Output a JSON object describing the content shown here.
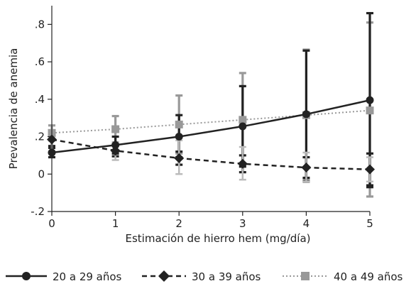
{
  "chart_data": {
    "type": "line",
    "xlabel": "Estimación de hierro hem (mg/día)",
    "ylabel": "Prevalencia de anemia",
    "xlim": [
      0,
      5
    ],
    "ylim": [
      -0.2,
      0.9
    ],
    "x_ticks": [
      "0",
      "1",
      "2",
      "3",
      "4",
      "5"
    ],
    "y_ticks": [
      {
        "value": -0.2,
        "label": "-.2"
      },
      {
        "value": 0,
        "label": "0"
      },
      {
        "value": 0.2,
        "label": ".2"
      },
      {
        "value": 0.4,
        "label": ".4"
      },
      {
        "value": 0.6,
        "label": ".6"
      },
      {
        "value": 0.8,
        "label": ".8"
      }
    ],
    "x": [
      0,
      1,
      2,
      3,
      4,
      5
    ],
    "legend_position": "bottom",
    "series": [
      {
        "name": "40 a 49 años",
        "color": "#999999",
        "dash": "dotted",
        "marker": "square",
        "values": [
          0.22,
          0.24,
          0.265,
          0.29,
          0.315,
          0.34
        ],
        "ci_low": [
          0.18,
          0.17,
          0.11,
          0.04,
          -0.03,
          -0.12
        ],
        "ci_high": [
          0.26,
          0.31,
          0.42,
          0.54,
          0.665,
          0.81
        ]
      },
      {
        "name": "20 a 29 años",
        "color": "#222222",
        "dash": "solid",
        "marker": "circle",
        "values": [
          0.115,
          0.155,
          0.2,
          0.255,
          0.32,
          0.395
        ],
        "ci_low": [
          0.09,
          0.11,
          0.09,
          0.04,
          -0.04,
          -0.07
        ],
        "ci_high": [
          0.14,
          0.2,
          0.315,
          0.47,
          0.66,
          0.86
        ]
      },
      {
        "name": "30 a 39 años",
        "color": "#222222",
        "dash": "dashed",
        "marker": "diamond",
        "values": [
          0.185,
          0.125,
          0.085,
          0.055,
          0.035,
          0.025
        ],
        "ci_low": [
          0.15,
          0.095,
          0.05,
          0.01,
          -0.02,
          -0.06
        ],
        "ci_high": [
          0.22,
          0.16,
          0.12,
          0.1,
          0.09,
          0.11
        ]
      },
      {
        "name": "",
        "color": "#bbbbbb",
        "dash": "none",
        "marker": "none",
        "values": [
          0.16,
          0.12,
          0.09,
          0.06,
          0.04,
          0.025
        ],
        "ci_low": [
          0.12,
          0.075,
          0.0,
          -0.03,
          -0.04,
          -0.04
        ],
        "ci_high": [
          0.2,
          0.17,
          0.18,
          0.145,
          0.115,
          0.09
        ]
      }
    ],
    "legend": [
      {
        "label": "20 a 29 años",
        "series_index": 1
      },
      {
        "label": "30 a 39 años",
        "series_index": 2
      },
      {
        "label": "40 a 49 años",
        "series_index": 0
      }
    ]
  }
}
